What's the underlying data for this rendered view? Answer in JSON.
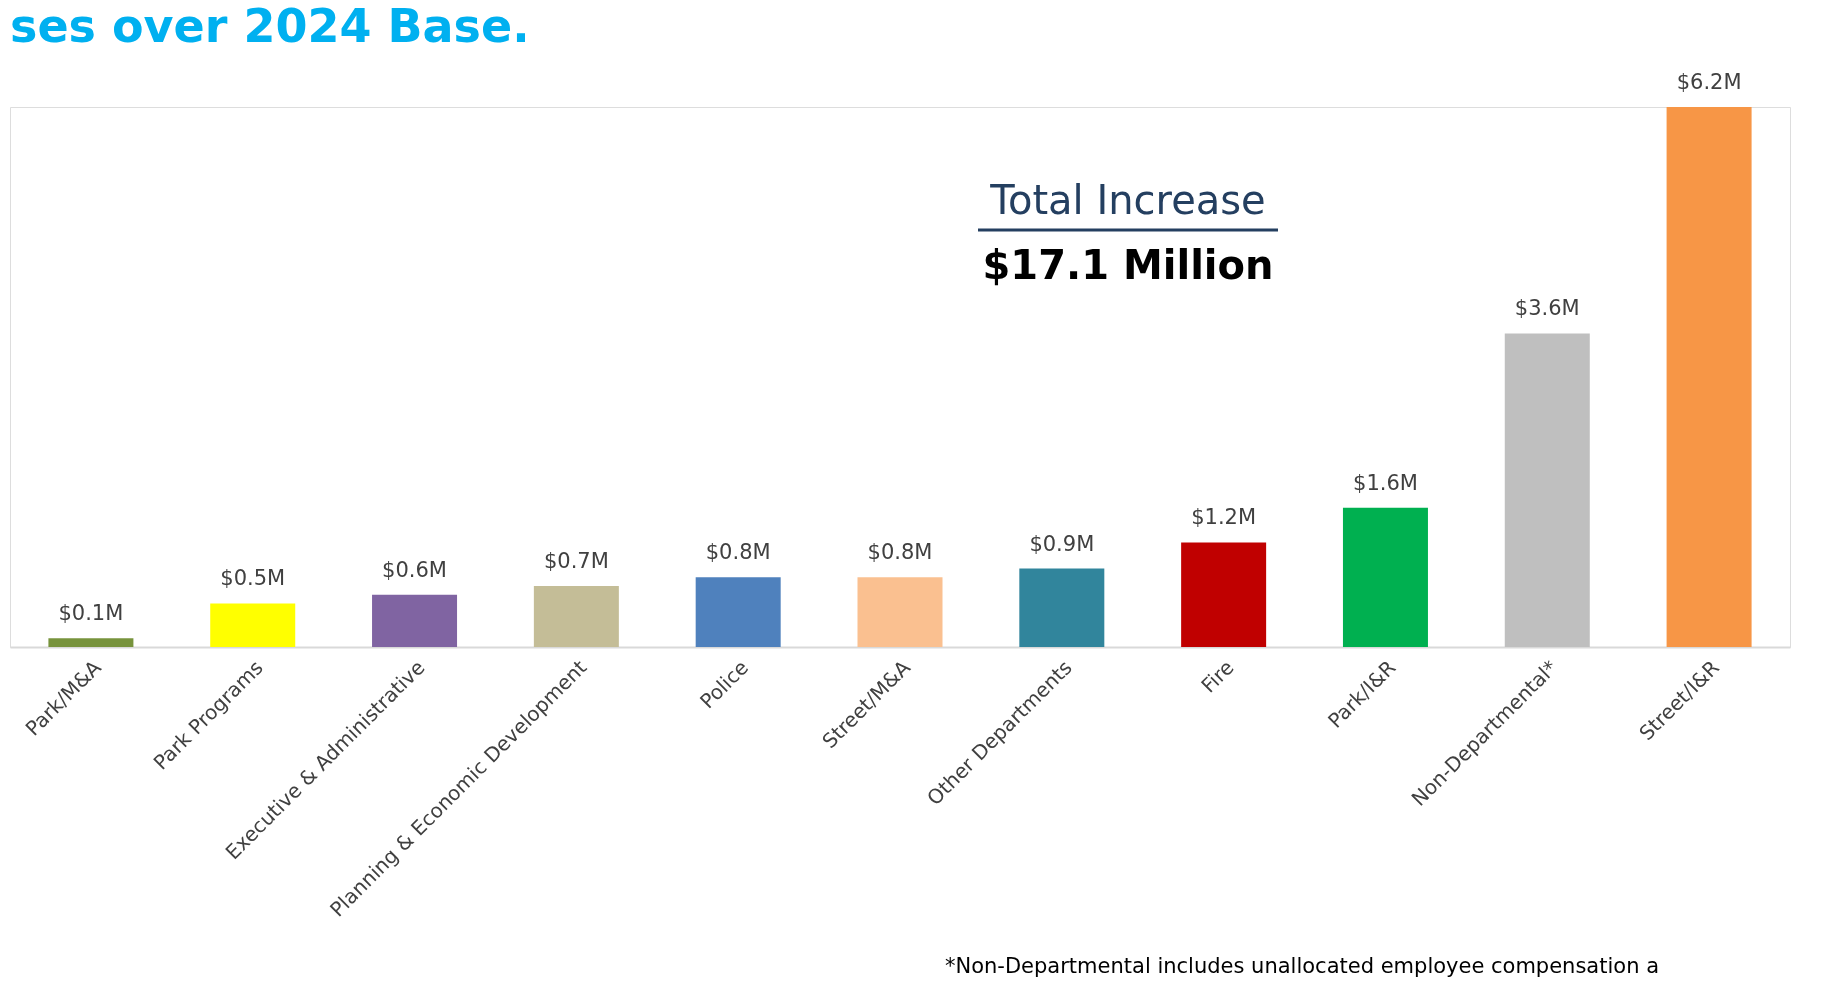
{
  "chart_data": {
    "type": "bar",
    "title": "ses over 2024 Base.",
    "categories": [
      "Park/M&A",
      "Park Programs",
      "Executive & Administrative",
      "Planning & Economic Development",
      "Police",
      "Street/M&A",
      "Other Departments",
      "Fire",
      "Park/I&R",
      "Non-Departmental*",
      "Street/I&R"
    ],
    "values": [
      0.1,
      0.5,
      0.6,
      0.7,
      0.8,
      0.8,
      0.9,
      1.2,
      1.6,
      3.6,
      6.2
    ],
    "colors": [
      "#77933c",
      "#ffff00",
      "#8064a2",
      "#c4bd97",
      "#4f81bd",
      "#fac090",
      "#31859c",
      "#c00000",
      "#00b050",
      "#bfbfbf",
      "#f79646"
    ],
    "value_labels": [
      "$0.1M",
      "$0.5M",
      "$0.6M",
      "$0.7M",
      "$0.8M",
      "$0.8M",
      "$0.9M",
      "$1.2M",
      "$1.6M",
      "$3.6M",
      "$6.2M"
    ],
    "annotations": [
      "Total Increase",
      "$17.1 Million",
      "*Non-Departmental includes unallocated employee compensation a"
    ],
    "grid": false
  }
}
